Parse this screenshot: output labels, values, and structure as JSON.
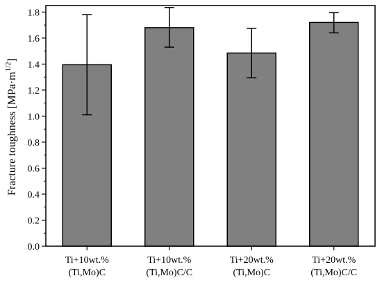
{
  "chart_data": {
    "type": "bar",
    "title": "",
    "xlabel": "",
    "ylabel": {
      "text": "Fracture toughness [MPa·m",
      "superscript": "1/2",
      "suffix": "]"
    },
    "categories": [
      [
        "Ti+10wt.%",
        "(Ti,Mo)C"
      ],
      [
        "Ti+10wt.%",
        "(Ti,Mo)C/C"
      ],
      [
        "Ti+20wt.%",
        "(Ti,Mo)C"
      ],
      [
        "Ti+20wt.%",
        "(Ti,Mo)C/C"
      ]
    ],
    "values": [
      1.395,
      1.68,
      1.485,
      1.72
    ],
    "error_low": [
      1.01,
      1.53,
      1.295,
      1.64
    ],
    "error_high": [
      1.78,
      1.835,
      1.675,
      1.795
    ],
    "ylim": [
      0,
      1.85
    ],
    "yticks": [
      "0.0",
      "0.2",
      "0.4",
      "0.6",
      "0.8",
      "1.0",
      "1.2",
      "1.4",
      "1.6",
      "1.8"
    ],
    "grid": false,
    "legend": "none",
    "bar_color": "#808080",
    "edge_color": "#000000"
  }
}
